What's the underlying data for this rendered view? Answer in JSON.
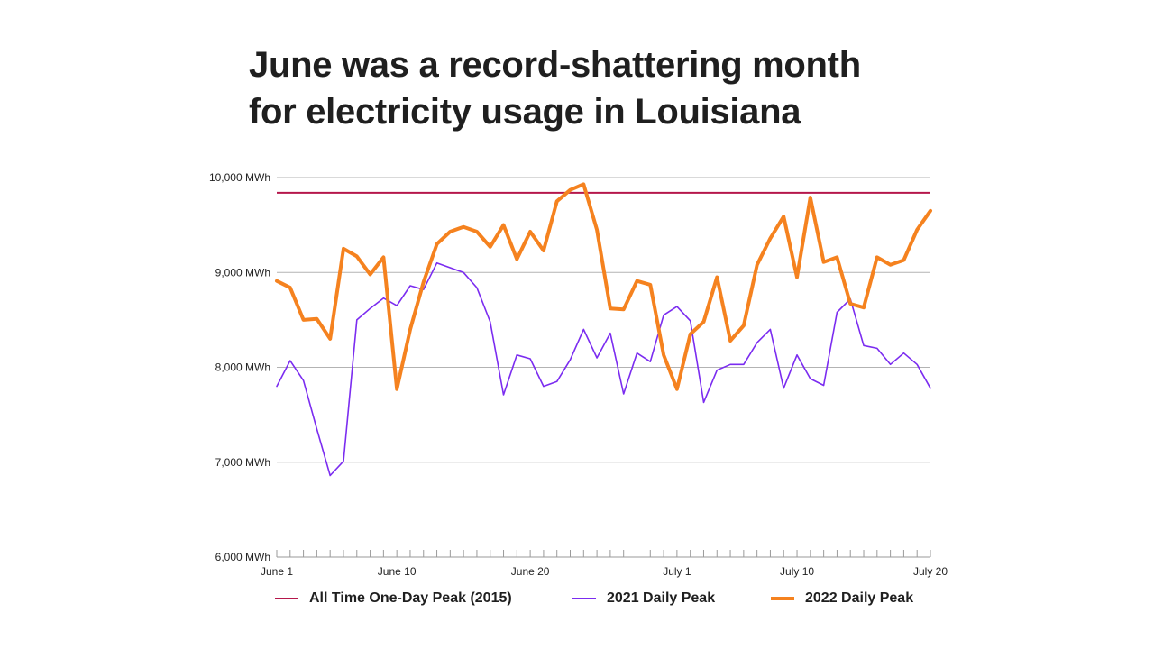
{
  "chart_data": {
    "type": "line",
    "title_lines": [
      "June was a record-shattering month",
      "for electricity usage in Louisiana"
    ],
    "y_tick_labels": [
      "10,000 MWh",
      "9,000 MWh",
      "8,000 MWh",
      "7,000 MWh",
      "6,000 MWh"
    ],
    "y_ticks": [
      10000,
      9000,
      8000,
      7000,
      6000
    ],
    "ylim": [
      6000,
      10000
    ],
    "x_tick_labels": [
      {
        "label": "June 1",
        "day_index": 0
      },
      {
        "label": "June 10",
        "day_index": 9
      },
      {
        "label": "June 20",
        "day_index": 19
      },
      {
        "label": "July 1",
        "day_index": 30
      },
      {
        "label": "July 10",
        "day_index": 39
      },
      {
        "label": "July 20",
        "day_index": 49
      }
    ],
    "grid": true,
    "legend_position": "bottom",
    "reference_line": {
      "name": "All Time One-Day Peak (2015)",
      "value": 9840,
      "color": "#b5174b"
    },
    "series": [
      {
        "name": "2021 Daily Peak",
        "color": "#7b2cf0",
        "values": [
          7800,
          8070,
          7860,
          7350,
          6860,
          7010,
          8500,
          8620,
          8730,
          8650,
          8860,
          8820,
          9100,
          9050,
          9000,
          8840,
          8480,
          7710,
          8130,
          8090,
          7800,
          7850,
          8080,
          8400,
          8100,
          8360,
          7720,
          8150,
          8060,
          8550,
          8640,
          8490,
          7630,
          7970,
          8030,
          8030,
          8260,
          8400,
          7780,
          8130,
          7880,
          7810,
          8580,
          8720,
          8230,
          8200,
          8030,
          8150,
          8030,
          7780
        ]
      },
      {
        "name": "2022 Daily Peak",
        "color": "#f5821f",
        "values": [
          8910,
          8840,
          8500,
          8510,
          8300,
          9250,
          9170,
          8980,
          9160,
          7770,
          8400,
          8900,
          9300,
          9430,
          9480,
          9430,
          9270,
          9500,
          9140,
          9430,
          9230,
          9750,
          9870,
          9930,
          9450,
          8620,
          8610,
          8910,
          8870,
          8130,
          7770,
          8350,
          8480,
          8950,
          8280,
          8440,
          9080,
          9360,
          9590,
          8950,
          9790,
          9110,
          9160,
          8670,
          8630,
          9160,
          9080,
          9130,
          9450,
          9650
        ]
      }
    ]
  }
}
